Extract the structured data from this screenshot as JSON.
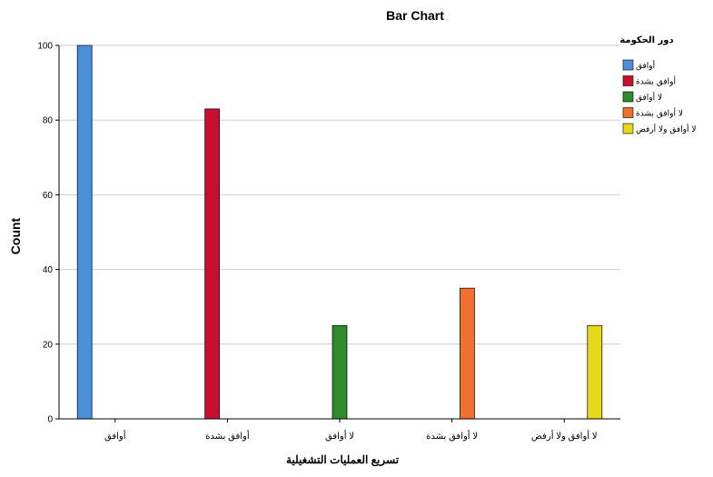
{
  "chart_data": {
    "type": "bar",
    "title": "Bar Chart",
    "xlabel": "تسريع العمليات التشغيلية",
    "ylabel": "Count",
    "ylim": [
      0,
      100
    ],
    "yticks": [
      0,
      20,
      40,
      60,
      80,
      100
    ],
    "grid": true,
    "legend_title": "دور الحكومة",
    "legend_position": "top-right",
    "categories": [
      "أوافق",
      "أوافق بشدة",
      "لا أوافق",
      "لا أوافق بشدة",
      "لا أوافق ولا أرفض"
    ],
    "series": [
      {
        "name": "أوافق",
        "color": "#4a90d9",
        "values": [
          100,
          0,
          0,
          0,
          0
        ]
      },
      {
        "name": "أوافق بشدة",
        "color": "#c8102e",
        "values": [
          0,
          83,
          0,
          0,
          0
        ]
      },
      {
        "name": "لا أوافق",
        "color": "#2e8b2e",
        "values": [
          0,
          0,
          25,
          0,
          0
        ]
      },
      {
        "name": "لا أوافق بشدة",
        "color": "#f07030",
        "values": [
          0,
          0,
          0,
          35,
          0
        ]
      },
      {
        "name": "لا أوافق ولا أرفض",
        "color": "#e8d81a",
        "values": [
          0,
          0,
          0,
          0,
          25
        ]
      }
    ]
  }
}
